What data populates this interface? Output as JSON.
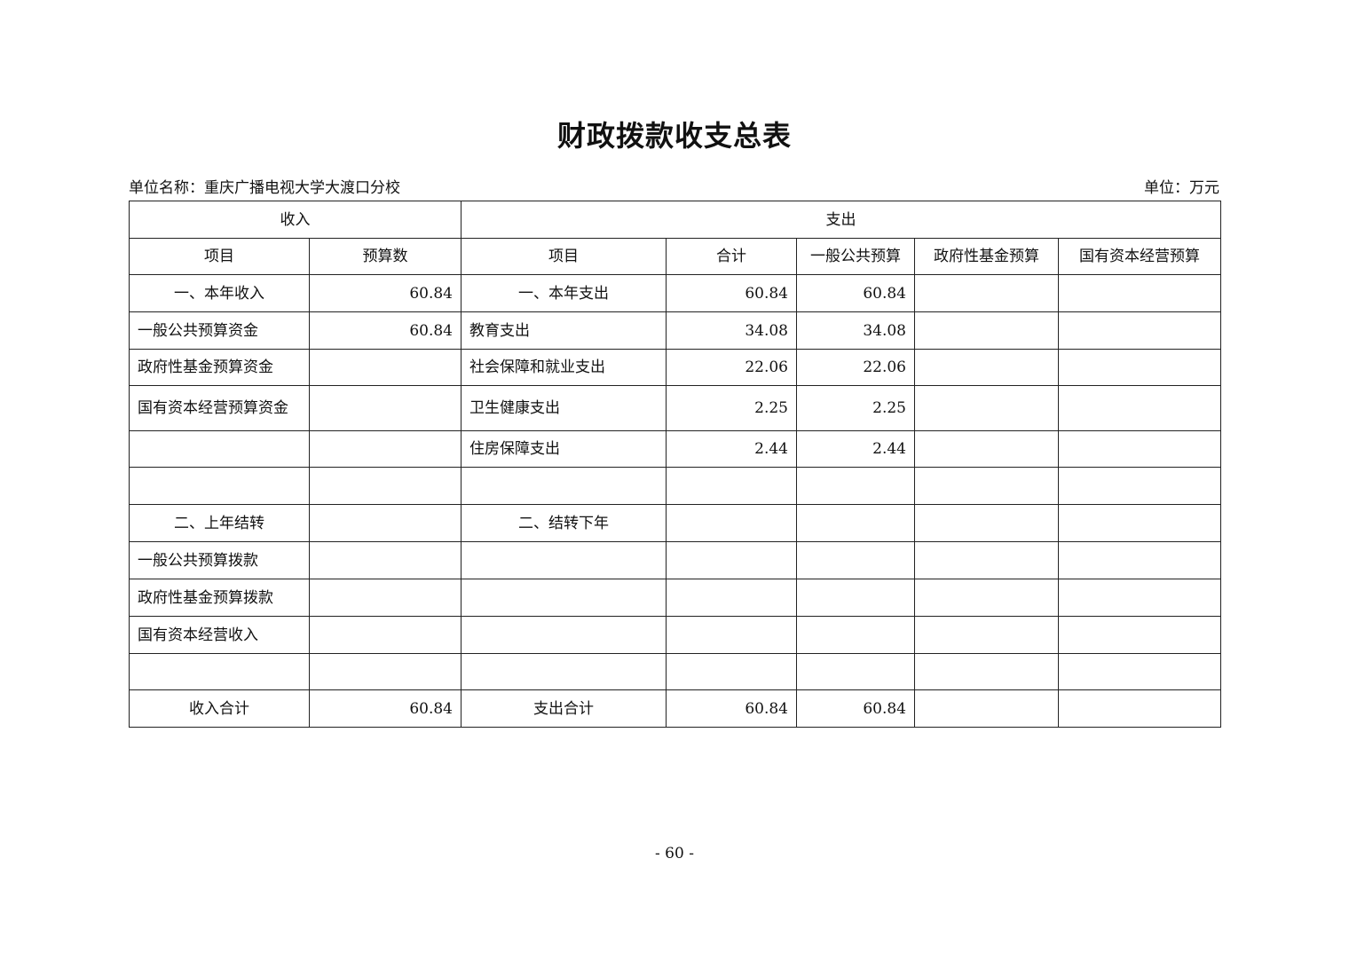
{
  "title": "财政拨款收支总表",
  "unit_name": "单位名称：重庆广播电视大学大渡口分校",
  "unit": "单位：万元",
  "table": {
    "group_headers": {
      "income": "收入",
      "expense": "支出"
    },
    "columns": [
      "项目",
      "预算数",
      "项目",
      "合计",
      "一般公共预算",
      "政府性基金预算",
      "国有资本经营预算"
    ],
    "rows": [
      [
        "一、本年收入",
        "60.84",
        "一、本年支出",
        "60.84",
        "60.84",
        "",
        ""
      ],
      [
        "一般公共预算资金",
        "60.84",
        "教育支出",
        "34.08",
        "34.08",
        "",
        ""
      ],
      [
        "政府性基金预算资金",
        "",
        "社会保障和就业支出",
        "22.06",
        "22.06",
        "",
        ""
      ],
      [
        "国有资本经营预算资金",
        "",
        "卫生健康支出",
        "2.25",
        "2.25",
        "",
        ""
      ],
      [
        "",
        "",
        "住房保障支出",
        "2.44",
        "2.44",
        "",
        ""
      ],
      [
        "",
        "",
        "",
        "",
        "",
        "",
        ""
      ],
      [
        "二、上年结转",
        "",
        "二、结转下年",
        "",
        "",
        "",
        ""
      ],
      [
        "一般公共预算拨款",
        "",
        "",
        "",
        "",
        "",
        ""
      ],
      [
        "政府性基金预算拨款",
        "",
        "",
        "",
        "",
        "",
        ""
      ],
      [
        "国有资本经营收入",
        "",
        "",
        "",
        "",
        "",
        ""
      ],
      [
        "",
        "",
        "",
        "",
        "",
        "",
        ""
      ],
      [
        "收入合计",
        "60.84",
        "支出合计",
        "60.84",
        "60.84",
        "",
        ""
      ]
    ]
  },
  "page_number": "- 60 -"
}
